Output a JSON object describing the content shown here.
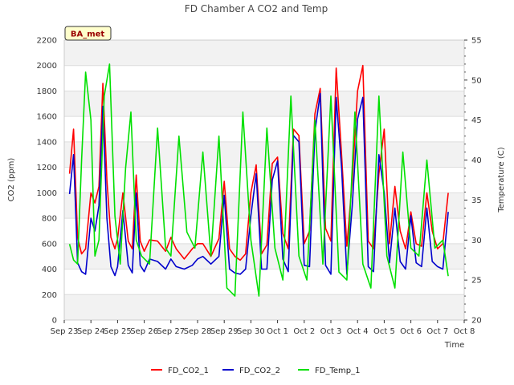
{
  "chart_data": {
    "type": "line",
    "title": "FD Chamber A CO2 and Temp",
    "badge": "BA_met",
    "xlabel": "Time",
    "ylabel_left": "CO2 (ppm)",
    "ylabel_right": "Temperature (C)",
    "x_tick_labels": [
      "Sep 23",
      "Sep 24",
      "Sep 25",
      "Sep 26",
      "Sep 27",
      "Sep 28",
      "Sep 29",
      "Sep 30",
      "Oct 1",
      "Oct 2",
      "Oct 3",
      "Oct 4",
      "Oct 5",
      "Oct 6",
      "Oct 7",
      "Oct 8"
    ],
    "x_range_days": [
      0,
      15
    ],
    "ylim_left": [
      0,
      2200
    ],
    "y_ticks_left": [
      0,
      200,
      400,
      600,
      800,
      1000,
      1200,
      1400,
      1600,
      1800,
      2000,
      2200
    ],
    "ylim_right": [
      20,
      55
    ],
    "y_ticks_right": [
      20,
      25,
      30,
      35,
      40,
      45,
      50,
      55
    ],
    "grid": true,
    "band_colors": [
      "#f2f2f2",
      "#ffffff"
    ],
    "legend_position": "bottom",
    "series": [
      {
        "name": "FD_CO2_1",
        "axis": "left",
        "color": "#ff0000",
        "x": [
          0.2,
          0.35,
          0.5,
          0.65,
          0.8,
          1.0,
          1.15,
          1.3,
          1.45,
          1.6,
          1.75,
          1.9,
          2.0,
          2.2,
          2.4,
          2.55,
          2.7,
          2.85,
          3.0,
          3.2,
          3.5,
          3.8,
          4.0,
          4.2,
          4.5,
          4.8,
          5.0,
          5.2,
          5.5,
          5.8,
          6.0,
          6.2,
          6.4,
          6.6,
          6.8,
          7.0,
          7.2,
          7.4,
          7.6,
          7.8,
          8.0,
          8.2,
          8.4,
          8.6,
          8.8,
          9.0,
          9.2,
          9.4,
          9.6,
          9.8,
          10.0,
          10.2,
          10.4,
          10.6,
          10.8,
          11.0,
          11.2,
          11.4,
          11.6,
          11.8,
          12.0,
          12.2,
          12.4,
          12.6,
          12.8,
          13.0,
          13.2,
          13.4,
          13.6,
          13.8,
          14.0,
          14.2,
          14.4
        ],
        "y": [
          1150,
          1500,
          650,
          520,
          560,
          1000,
          920,
          1050,
          1860,
          1100,
          650,
          560,
          640,
          1000,
          620,
          560,
          1140,
          620,
          540,
          630,
          620,
          540,
          650,
          560,
          480,
          560,
          600,
          600,
          500,
          640,
          1090,
          560,
          500,
          470,
          520,
          1000,
          1220,
          520,
          590,
          1230,
          1280,
          680,
          560,
          1500,
          1450,
          600,
          700,
          1620,
          1820,
          720,
          620,
          1980,
          1300,
          580,
          1100,
          1800,
          2000,
          620,
          560,
          1150,
          1500,
          600,
          1050,
          700,
          560,
          850,
          600,
          580,
          1000,
          700,
          560,
          600,
          1000
        ]
      },
      {
        "name": "FD_CO2_2",
        "axis": "left",
        "color": "#0000cc",
        "x": [
          0.2,
          0.35,
          0.5,
          0.65,
          0.8,
          1.0,
          1.15,
          1.3,
          1.45,
          1.6,
          1.75,
          1.9,
          2.0,
          2.2,
          2.4,
          2.55,
          2.7,
          2.85,
          3.0,
          3.2,
          3.5,
          3.8,
          4.0,
          4.2,
          4.5,
          4.8,
          5.0,
          5.2,
          5.5,
          5.8,
          6.0,
          6.2,
          6.4,
          6.6,
          6.8,
          7.0,
          7.2,
          7.4,
          7.6,
          7.8,
          8.0,
          8.2,
          8.4,
          8.6,
          8.8,
          9.0,
          9.2,
          9.4,
          9.6,
          9.8,
          10.0,
          10.2,
          10.4,
          10.6,
          10.8,
          11.0,
          11.2,
          11.4,
          11.6,
          11.8,
          12.0,
          12.2,
          12.4,
          12.6,
          12.8,
          13.0,
          13.2,
          13.4,
          13.6,
          13.8,
          14.0,
          14.2,
          14.4
        ],
        "y": [
          990,
          1300,
          450,
          380,
          360,
          800,
          700,
          900,
          1680,
          800,
          420,
          350,
          420,
          860,
          430,
          370,
          1000,
          430,
          380,
          480,
          460,
          400,
          480,
          420,
          400,
          430,
          480,
          500,
          440,
          500,
          980,
          400,
          370,
          360,
          400,
          820,
          1150,
          400,
          400,
          1100,
          1250,
          480,
          380,
          1450,
          1400,
          430,
          420,
          1480,
          1780,
          430,
          360,
          1750,
          1200,
          360,
          900,
          1580,
          1750,
          420,
          380,
          1300,
          1000,
          450,
          880,
          460,
          400,
          820,
          450,
          420,
          880,
          460,
          420,
          400,
          850
        ]
      },
      {
        "name": "FD_Temp_1",
        "axis": "right",
        "color": "#00e000",
        "x": [
          0.2,
          0.35,
          0.5,
          0.65,
          0.8,
          1.0,
          1.15,
          1.3,
          1.5,
          1.7,
          1.9,
          2.1,
          2.3,
          2.5,
          2.7,
          2.9,
          3.2,
          3.5,
          3.8,
          4.0,
          4.3,
          4.6,
          4.9,
          5.2,
          5.5,
          5.8,
          6.1,
          6.4,
          6.7,
          7.0,
          7.3,
          7.6,
          7.9,
          8.2,
          8.5,
          8.8,
          9.1,
          9.4,
          9.7,
          10.0,
          10.3,
          10.6,
          10.9,
          11.2,
          11.5,
          11.8,
          12.1,
          12.4,
          12.7,
          13.0,
          13.3,
          13.6,
          13.9,
          14.2,
          14.4
        ],
        "y": [
          29.5,
          27.5,
          27,
          40,
          51,
          45,
          28,
          30,
          48,
          52,
          33,
          27,
          39,
          46,
          30,
          28,
          27,
          44,
          29,
          28,
          43,
          31,
          29,
          41,
          28,
          43,
          24,
          23,
          46,
          30,
          23,
          44,
          29,
          25,
          48,
          28,
          25,
          45,
          27,
          48,
          26,
          25,
          46,
          27,
          24,
          48,
          28,
          24,
          41,
          29,
          28,
          40,
          29,
          30,
          25.5
        ]
      }
    ]
  }
}
